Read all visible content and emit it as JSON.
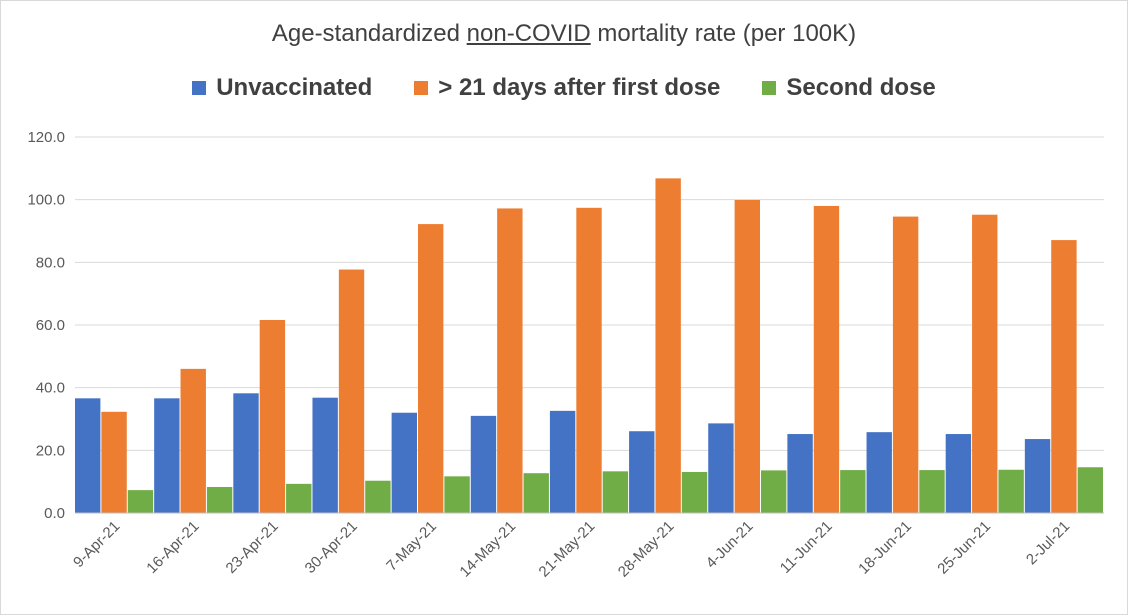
{
  "chart_data": {
    "type": "bar",
    "title_prefix": "Age-standardized ",
    "title_underlined": "non-COVID",
    "title_suffix": " mortality rate (per 100K)",
    "categories": [
      "9-Apr-21",
      "16-Apr-21",
      "23-Apr-21",
      "30-Apr-21",
      "7-May-21",
      "14-May-21",
      "21-May-21",
      "28-May-21",
      "4-Jun-21",
      "11-Jun-21",
      "18-Jun-21",
      "25-Jun-21",
      "2-Jul-21"
    ],
    "series": [
      {
        "name": "Unvaccinated",
        "color": "#4472c4",
        "values": [
          36.6,
          36.6,
          38.2,
          36.8,
          32.0,
          31.0,
          32.6,
          26.1,
          28.6,
          25.2,
          25.8,
          25.2,
          23.6
        ]
      },
      {
        "name": "> 21 days after first dose",
        "color": "#ed7d31",
        "values": [
          32.3,
          46.0,
          61.6,
          77.7,
          92.2,
          97.2,
          97.4,
          106.8,
          99.9,
          98.0,
          94.6,
          95.2,
          87.1
        ]
      },
      {
        "name": "Second dose",
        "color": "#70ad47",
        "values": [
          7.3,
          8.3,
          9.3,
          10.3,
          11.7,
          12.7,
          13.3,
          13.1,
          13.6,
          13.7,
          13.7,
          13.8,
          14.6
        ]
      }
    ],
    "ylim": [
      0,
      120
    ],
    "yticks": [
      "0.0",
      "20.0",
      "40.0",
      "60.0",
      "80.0",
      "100.0",
      "120.0"
    ],
    "grid": true,
    "legend_position": "top"
  }
}
